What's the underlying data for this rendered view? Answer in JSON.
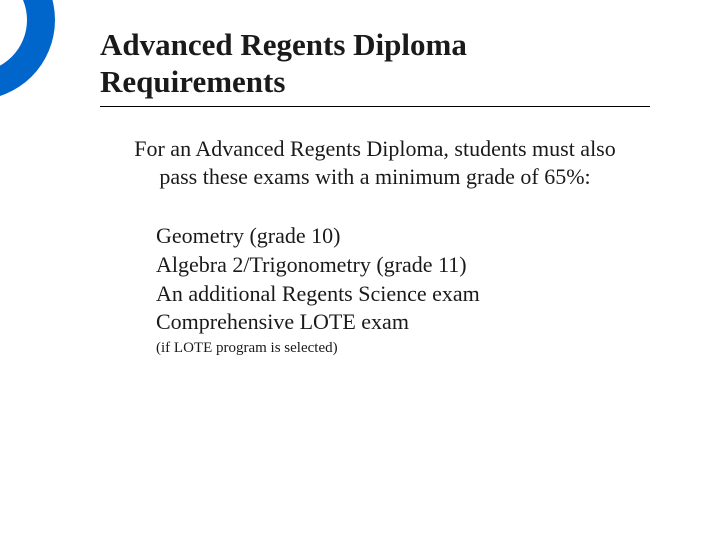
{
  "decoration": {
    "outer_color": "#0066cc",
    "inner_color": "#ffffff"
  },
  "title": "Advanced Regents Diploma Requirements",
  "intro": "For an Advanced Regents Diploma, students must also pass these exams with a minimum grade of 65%:",
  "exams": [
    "Geometry (grade 10)",
    "Algebra 2/Trigonometry (grade 11)",
    "An additional Regents Science exam",
    "Comprehensive LOTE exam"
  ],
  "note": "(if LOTE program is selected)"
}
